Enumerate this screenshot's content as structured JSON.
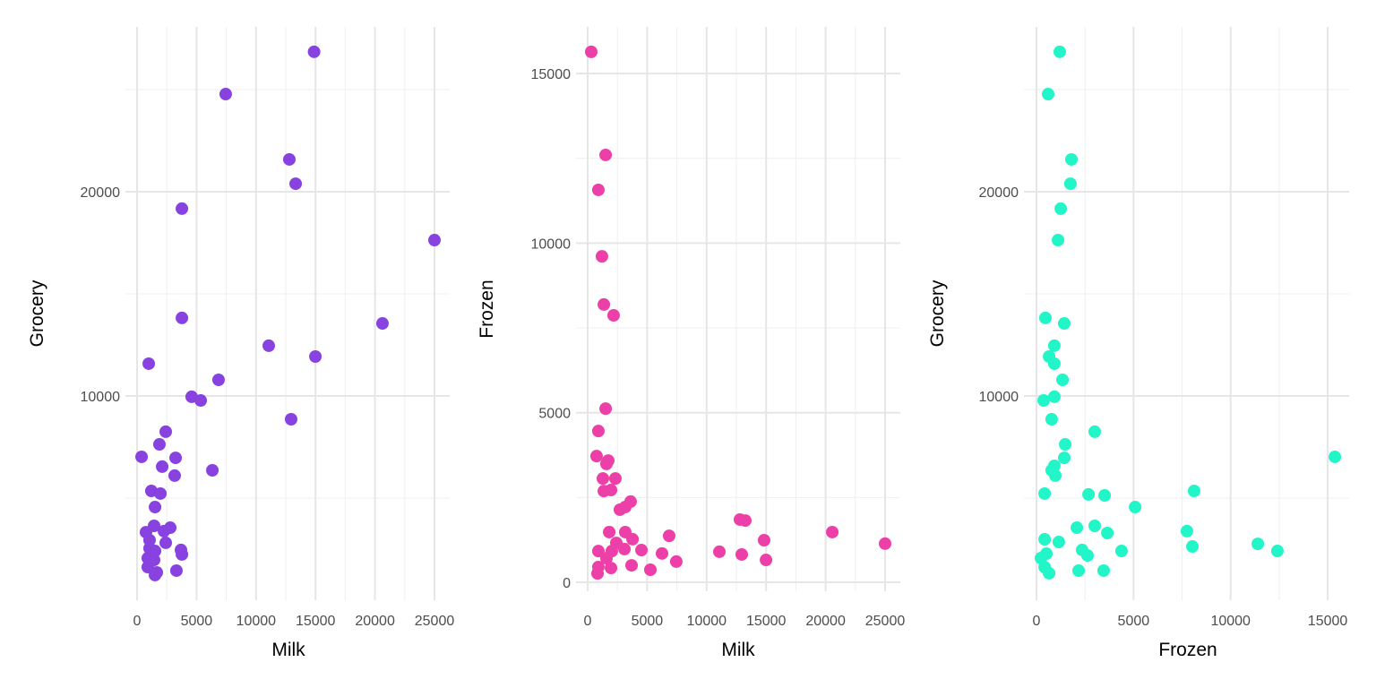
{
  "chart_data": [
    {
      "type": "scatter",
      "xlabel": "Milk",
      "ylabel": "Grocery",
      "xlim": [
        0,
        25000
      ],
      "ylim": [
        0,
        27000
      ],
      "xticks": [
        "0",
        "5000",
        "10000",
        "15000",
        "20000",
        "25000"
      ],
      "yticks": [
        "10000",
        "20000"
      ],
      "grid": true,
      "color": "#8842E0",
      "points": [
        [
          14880,
          26850
        ],
        [
          7450,
          24780
        ],
        [
          12800,
          21580
        ],
        [
          13330,
          20390
        ],
        [
          3770,
          19170
        ],
        [
          25000,
          17630
        ],
        [
          3770,
          13820
        ],
        [
          20630,
          13550
        ],
        [
          11070,
          12460
        ],
        [
          980,
          11580
        ],
        [
          14990,
          11930
        ],
        [
          6850,
          10790
        ],
        [
          4590,
          9960
        ],
        [
          5350,
          9780
        ],
        [
          12950,
          8860
        ],
        [
          2410,
          8250
        ],
        [
          1880,
          7630
        ],
        [
          380,
          7020
        ],
        [
          3240,
          6970
        ],
        [
          2110,
          6540
        ],
        [
          3160,
          6100
        ],
        [
          6330,
          6360
        ],
        [
          1200,
          5350
        ],
        [
          1960,
          5220
        ],
        [
          1510,
          4560
        ],
        [
          1430,
          3640
        ],
        [
          2790,
          3550
        ],
        [
          750,
          3330
        ],
        [
          2260,
          3380
        ],
        [
          1050,
          2940
        ],
        [
          2410,
          2810
        ],
        [
          1050,
          2540
        ],
        [
          1510,
          2410
        ],
        [
          3690,
          2460
        ],
        [
          3770,
          2240
        ],
        [
          900,
          2060
        ],
        [
          1430,
          1970
        ],
        [
          900,
          1620
        ],
        [
          1660,
          1360
        ],
        [
          3310,
          1450
        ],
        [
          1510,
          1230
        ]
      ]
    },
    {
      "type": "scatter",
      "xlabel": "Milk",
      "ylabel": "Frozen",
      "xlim": [
        0,
        25000
      ],
      "ylim": [
        0,
        16000
      ],
      "xticks": [
        "0",
        "5000",
        "10000",
        "15000",
        "20000",
        "25000"
      ],
      "yticks": [
        "0",
        "5000",
        "10000",
        "15000"
      ],
      "grid": true,
      "color": "#EC3FA8",
      "points": [
        [
          300,
          15640
        ],
        [
          1510,
          12600
        ],
        [
          900,
          11570
        ],
        [
          1200,
          9610
        ],
        [
          1360,
          8190
        ],
        [
          2180,
          7870
        ],
        [
          1510,
          5120
        ],
        [
          900,
          4460
        ],
        [
          750,
          3720
        ],
        [
          1730,
          3590
        ],
        [
          1580,
          3490
        ],
        [
          1280,
          3060
        ],
        [
          2330,
          3060
        ],
        [
          1360,
          2690
        ],
        [
          1960,
          2720
        ],
        [
          2710,
          2140
        ],
        [
          3160,
          2220
        ],
        [
          3610,
          2380
        ],
        [
          1810,
          1480
        ],
        [
          3160,
          1480
        ],
        [
          3770,
          1270
        ],
        [
          2410,
          1160
        ],
        [
          6850,
          1370
        ],
        [
          900,
          920
        ],
        [
          2030,
          920
        ],
        [
          3090,
          980
        ],
        [
          4520,
          950
        ],
        [
          6250,
          850
        ],
        [
          7450,
          610
        ],
        [
          1580,
          710
        ],
        [
          3690,
          500
        ],
        [
          1960,
          420
        ],
        [
          900,
          450
        ],
        [
          830,
          260
        ],
        [
          5270,
          370
        ],
        [
          11070,
          900
        ],
        [
          12800,
          1850
        ],
        [
          13250,
          1820
        ],
        [
          12950,
          820
        ],
        [
          14830,
          1240
        ],
        [
          14990,
          660
        ],
        [
          20560,
          1480
        ],
        [
          25000,
          1140
        ]
      ]
    },
    {
      "type": "scatter",
      "xlabel": "Frozen",
      "ylabel": "Grocery",
      "xlim": [
        0,
        16000
      ],
      "ylim": [
        0,
        27000
      ],
      "xticks": [
        "0",
        "5000",
        "10000",
        "15000"
      ],
      "yticks": [
        "10000",
        "20000"
      ],
      "grid": true,
      "color": "#22F5C8",
      "points": [
        [
          1200,
          26850
        ],
        [
          600,
          24780
        ],
        [
          1800,
          21580
        ],
        [
          1750,
          20390
        ],
        [
          1250,
          19170
        ],
        [
          1110,
          17630
        ],
        [
          460,
          13820
        ],
        [
          1430,
          13550
        ],
        [
          920,
          12460
        ],
        [
          650,
          11930
        ],
        [
          920,
          11580
        ],
        [
          1340,
          10790
        ],
        [
          370,
          9780
        ],
        [
          920,
          9960
        ],
        [
          780,
          8860
        ],
        [
          3000,
          8250
        ],
        [
          1480,
          7630
        ],
        [
          1430,
          6970
        ],
        [
          920,
          6580
        ],
        [
          780,
          6360
        ],
        [
          970,
          6100
        ],
        [
          420,
          5220
        ],
        [
          2680,
          5180
        ],
        [
          3510,
          5130
        ],
        [
          5080,
          4560
        ],
        [
          2080,
          3550
        ],
        [
          3000,
          3640
        ],
        [
          3650,
          3290
        ],
        [
          420,
          2980
        ],
        [
          1150,
          2850
        ],
        [
          2350,
          2460
        ],
        [
          2630,
          2190
        ],
        [
          4380,
          2410
        ],
        [
          510,
          2280
        ],
        [
          230,
          2060
        ],
        [
          420,
          1620
        ],
        [
          650,
          1320
        ],
        [
          2170,
          1450
        ],
        [
          3460,
          1450
        ],
        [
          8120,
          5350
        ],
        [
          7750,
          3380
        ],
        [
          8030,
          2630
        ],
        [
          11400,
          2760
        ],
        [
          12410,
          2410
        ],
        [
          15370,
          7020
        ]
      ]
    }
  ]
}
